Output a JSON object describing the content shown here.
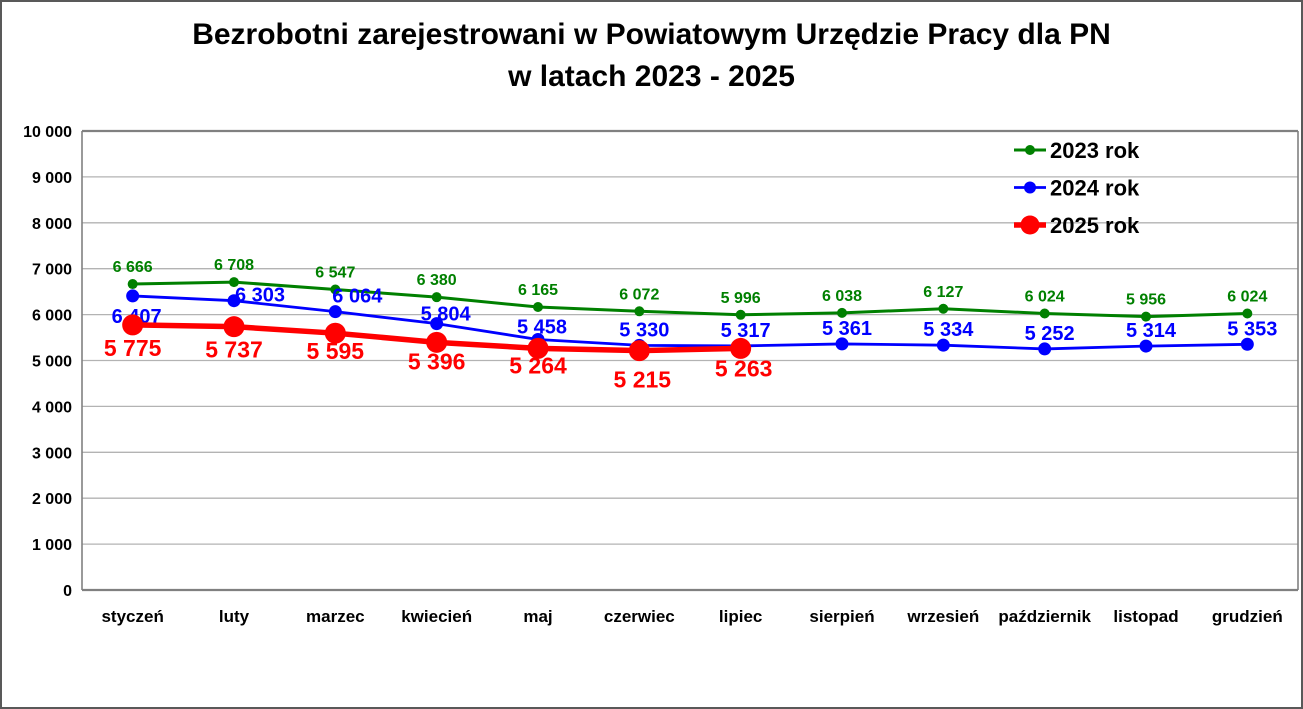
{
  "chart_data": {
    "type": "line",
    "title": "Bezrobotni zarejestrowani w Powiatowym Urzędzie Pracy dla PN",
    "subtitle": "w latach 2023 - 2025",
    "categories": [
      "styczeń",
      "luty",
      "marzec",
      "kwiecień",
      "maj",
      "czerwiec",
      "lipiec",
      "sierpień",
      "wrzesień",
      "październik",
      "listopad",
      "grudzień"
    ],
    "series": [
      {
        "name": "2023 rok",
        "color": "#008000",
        "values": [
          6666,
          6708,
          6547,
          6380,
          6165,
          6072,
          5996,
          6038,
          6127,
          6024,
          5956,
          6024
        ]
      },
      {
        "name": "2024 rok",
        "color": "#0000ff",
        "values": [
          6407,
          6303,
          6064,
          5804,
          5458,
          5330,
          5317,
          5361,
          5334,
          5252,
          5314,
          5353
        ]
      },
      {
        "name": "2025 rok",
        "color": "#ff0000",
        "values": [
          5775,
          5737,
          5595,
          5396,
          5264,
          5215,
          5263
        ]
      }
    ],
    "ylim": [
      0,
      10000
    ],
    "ytick_step": 1000,
    "y_tick_labels": [
      "0",
      "1 000",
      "2 000",
      "3 000",
      "4 000",
      "5 000",
      "6 000",
      "7 000",
      "8 000",
      "9 000",
      "10 000"
    ],
    "grid": true,
    "legend_position": "top-right",
    "data_labels": true,
    "number_format": "space-thousands",
    "colors": {
      "gridline": "#b3b3b3",
      "plot_border": "#808080",
      "text": "#000000",
      "frame_border": "#595959"
    }
  }
}
